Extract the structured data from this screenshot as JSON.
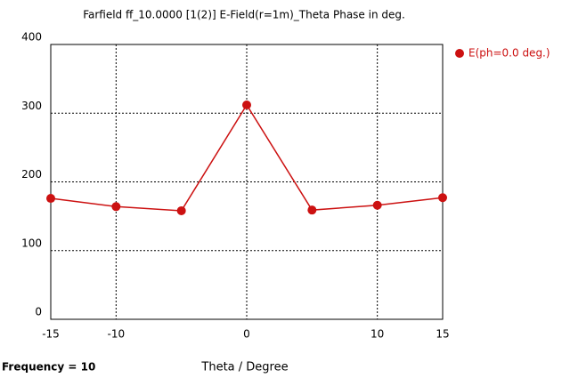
{
  "chart_data": {
    "type": "line",
    "title": "Farfield ff_10.0000 [1(2)] E-Field(r=1m)_Theta Phase in deg.",
    "x_label": "Theta / Degree",
    "footnote": "Frequency = 10",
    "x": [
      -15,
      -10,
      -5,
      0,
      5,
      10,
      15
    ],
    "series": [
      {
        "name": "E(ph=0.0 deg.)",
        "color": "#cc1111",
        "values": [
          176,
          164,
          158,
          312,
          159,
          166,
          177
        ]
      }
    ],
    "xlim": [
      -15,
      15
    ],
    "xticks": [
      -15,
      -10,
      0,
      10,
      15
    ],
    "ylim": [
      0,
      400
    ],
    "yticks": [
      0,
      100,
      200,
      300,
      400
    ],
    "grid": true,
    "legend": "right"
  }
}
